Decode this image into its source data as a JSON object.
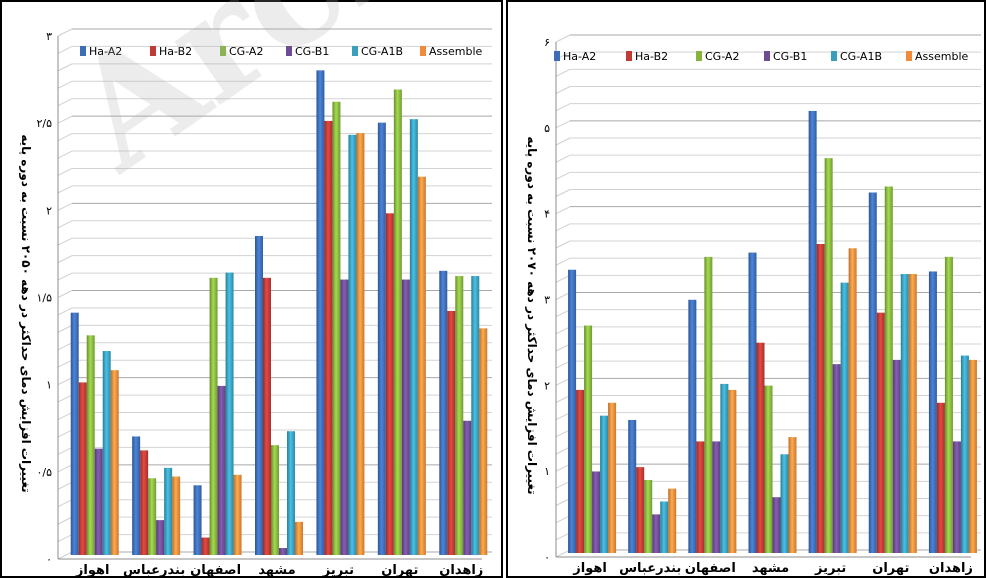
{
  "watermark": "Archi",
  "legend_colors": [
    "#3D6DB5",
    "#BE3B36",
    "#86B43F",
    "#6E4C94",
    "#3A9FBD",
    "#EE8C3C"
  ],
  "chart_data": [
    {
      "type": "bar",
      "ylabel": "تغییرات افزایش دمای حداکثر در دهه ۲۰۵۰ نسبت به دوره پایه",
      "categories": [
        "اهواز",
        "بندرعباس",
        "اصفهان",
        "مشهد",
        "تبریز",
        "تهران",
        "زاهدان"
      ],
      "ylim": [
        0,
        3
      ],
      "yticks": [
        0,
        0.5,
        1,
        1.5,
        2,
        2.5,
        3
      ],
      "ytick_labels": [
        "۰",
        "۰/۵",
        "۱",
        "۱/۵",
        "۲",
        "۲/۵",
        "۳"
      ],
      "grid": true,
      "legend_position": "top",
      "series": [
        {
          "name": "Ha-A2",
          "values": [
            1.39,
            0.68,
            0.4,
            1.83,
            2.78,
            2.48,
            1.63
          ]
        },
        {
          "name": "Ha-B2",
          "values": [
            0.99,
            0.6,
            0.1,
            1.59,
            2.49,
            1.96,
            1.4
          ]
        },
        {
          "name": "CG-A2",
          "values": [
            1.26,
            0.44,
            1.59,
            0.63,
            2.6,
            2.67,
            1.6
          ]
        },
        {
          "name": "CG-B1",
          "values": [
            0.61,
            0.2,
            0.97,
            0.04,
            1.58,
            1.58,
            0.77
          ]
        },
        {
          "name": "CG-A1B",
          "values": [
            1.17,
            0.5,
            1.62,
            0.71,
            2.41,
            2.5,
            1.6
          ]
        },
        {
          "name": "Assemble",
          "values": [
            1.06,
            0.45,
            0.46,
            0.19,
            2.42,
            2.17,
            1.3
          ]
        }
      ]
    },
    {
      "type": "bar",
      "ylabel": "تغییرات افزایش دمای حداکثر در دهه ۲۰۷۰ نسبت به دوره پایه",
      "categories": [
        "اهواز",
        "بندرعباس",
        "اصفهان",
        "مشهد",
        "تبریز",
        "تهران",
        "زاهدان"
      ],
      "ylim": [
        0,
        6
      ],
      "yticks": [
        0,
        1,
        2,
        3,
        4,
        5,
        6
      ],
      "ytick_labels": [
        "۰",
        "۱",
        "۲",
        "۳",
        "۴",
        "۵",
        "۶"
      ],
      "grid": true,
      "legend_position": "top",
      "series": [
        {
          "name": "Ha-A2",
          "values": [
            3.3,
            1.55,
            2.95,
            3.5,
            5.15,
            4.2,
            3.28
          ]
        },
        {
          "name": "Ha-B2",
          "values": [
            1.9,
            1.0,
            1.3,
            2.45,
            3.6,
            2.8,
            1.75
          ]
        },
        {
          "name": "CG-A2",
          "values": [
            2.65,
            0.85,
            3.45,
            1.95,
            4.6,
            4.27,
            3.45
          ]
        },
        {
          "name": "CG-B1",
          "values": [
            0.95,
            0.45,
            1.3,
            0.65,
            2.2,
            2.25,
            1.3
          ]
        },
        {
          "name": "CG-A1B",
          "values": [
            1.6,
            0.6,
            1.97,
            1.15,
            3.15,
            3.25,
            2.3
          ]
        },
        {
          "name": "Assemble",
          "values": [
            1.75,
            0.75,
            1.9,
            1.35,
            3.55,
            3.25,
            2.25
          ]
        }
      ]
    }
  ]
}
